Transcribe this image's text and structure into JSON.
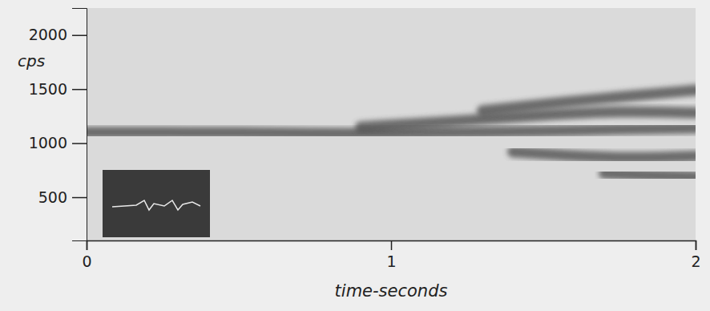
{
  "chart_data": {
    "type": "spectrogram",
    "x_label": "time-seconds",
    "y_label": "cps",
    "xlim": [
      0,
      2
    ],
    "xticks": [
      0,
      1,
      2
    ],
    "ylim": [
      100,
      2250
    ],
    "yticks": [
      500,
      1000,
      1500,
      2000
    ],
    "color": "#474747",
    "series": [
      {
        "x": [
          0,
          0.25,
          0.5,
          0.75,
          1.0,
          1.25,
          1.5,
          1.75,
          2.0
        ],
        "values": [
          1100,
          1100,
          1100,
          1090,
          1090,
          1100,
          1110,
          1130,
          1140
        ]
      },
      {
        "x": [
          0.9,
          1.2,
          1.5,
          1.75,
          2.0
        ],
        "values": [
          1150,
          1200,
          1260,
          1300,
          1280
        ]
      },
      {
        "x": [
          1.3,
          1.6,
          1.8,
          2.0
        ],
        "values": [
          1300,
          1390,
          1440,
          1490
        ]
      },
      {
        "x": [
          1.4,
          1.6,
          1.8,
          2.0
        ],
        "values": [
          920,
          880,
          860,
          880
        ]
      },
      {
        "x": [
          1.7,
          1.85,
          2.0
        ],
        "values": [
          720,
          700,
          690
        ]
      }
    ]
  }
}
